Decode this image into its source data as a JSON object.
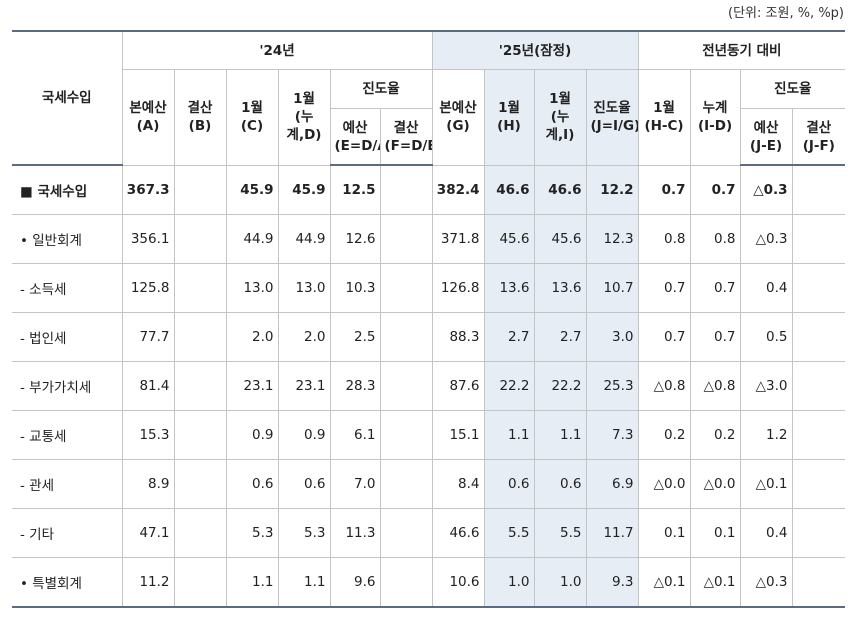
{
  "unit_note": "(단위: 조원, %, %p)",
  "header": {
    "corner": "국세수입",
    "groups": [
      "'24년",
      "'25년(잠정)",
      "전년동기 대비"
    ],
    "y24": [
      "본예산\n(A)",
      "결산\n(B)",
      "1월\n(C)",
      "1월\n(누계,D)"
    ],
    "y24_progress": "진도율",
    "y24_progress_sub": [
      "예산\n(E=D/A)",
      "결산\n(F=D/B)"
    ],
    "y25": [
      "본예산\n(G)",
      "1월\n(H)",
      "1월\n(누계,I)",
      "진도율\n(J=I/G)"
    ],
    "yoy": [
      "1월\n(H-C)",
      "누계\n(I-D)"
    ],
    "yoy_progress": "진도율",
    "yoy_progress_sub": [
      "예산\n(J-E)",
      "결산\n(J-F)"
    ]
  },
  "table": {
    "rows": [
      [
        "■ 국세수입",
        "367.3",
        null,
        "45.9",
        "45.9",
        "12.5",
        null,
        "382.4",
        "46.6",
        "46.6",
        "12.2",
        "0.7",
        "0.7",
        "△0.3",
        null
      ],
      [
        "• 일반회계",
        "356.1",
        null,
        "44.9",
        "44.9",
        "12.6",
        null,
        "371.8",
        "45.6",
        "45.6",
        "12.3",
        "0.8",
        "0.8",
        "△0.3",
        null
      ],
      [
        "- 소득세",
        "125.8",
        null,
        "13.0",
        "13.0",
        "10.3",
        null,
        "126.8",
        "13.6",
        "13.6",
        "10.7",
        "0.7",
        "0.7",
        "0.4",
        null
      ],
      [
        "- 법인세",
        "77.7",
        null,
        "2.0",
        "2.0",
        "2.5",
        null,
        "88.3",
        "2.7",
        "2.7",
        "3.0",
        "0.7",
        "0.7",
        "0.5",
        null
      ],
      [
        "- 부가가치세",
        "81.4",
        null,
        "23.1",
        "23.1",
        "28.3",
        null,
        "87.6",
        "22.2",
        "22.2",
        "25.3",
        "△0.8",
        "△0.8",
        "△3.0",
        null
      ],
      [
        "- 교통세",
        "15.3",
        null,
        "0.9",
        "0.9",
        "6.1",
        null,
        "15.1",
        "1.1",
        "1.1",
        "7.3",
        "0.2",
        "0.2",
        "1.2",
        null
      ],
      [
        "- 관세",
        "8.9",
        null,
        "0.6",
        "0.6",
        "7.0",
        null,
        "8.4",
        "0.6",
        "0.6",
        "6.9",
        "△0.0",
        "△0.0",
        "△0.1",
        null
      ],
      [
        "- 기타",
        "47.1",
        null,
        "5.3",
        "5.3",
        "11.3",
        null,
        "46.6",
        "5.5",
        "5.5",
        "11.7",
        "0.1",
        "0.1",
        "0.4",
        null
      ],
      [
        "• 특별회계",
        "11.2",
        null,
        "1.1",
        "1.1",
        "9.6",
        null,
        "10.6",
        "1.0",
        "1.0",
        "9.3",
        "△0.1",
        "△0.1",
        "△0.3",
        null
      ]
    ]
  }
}
